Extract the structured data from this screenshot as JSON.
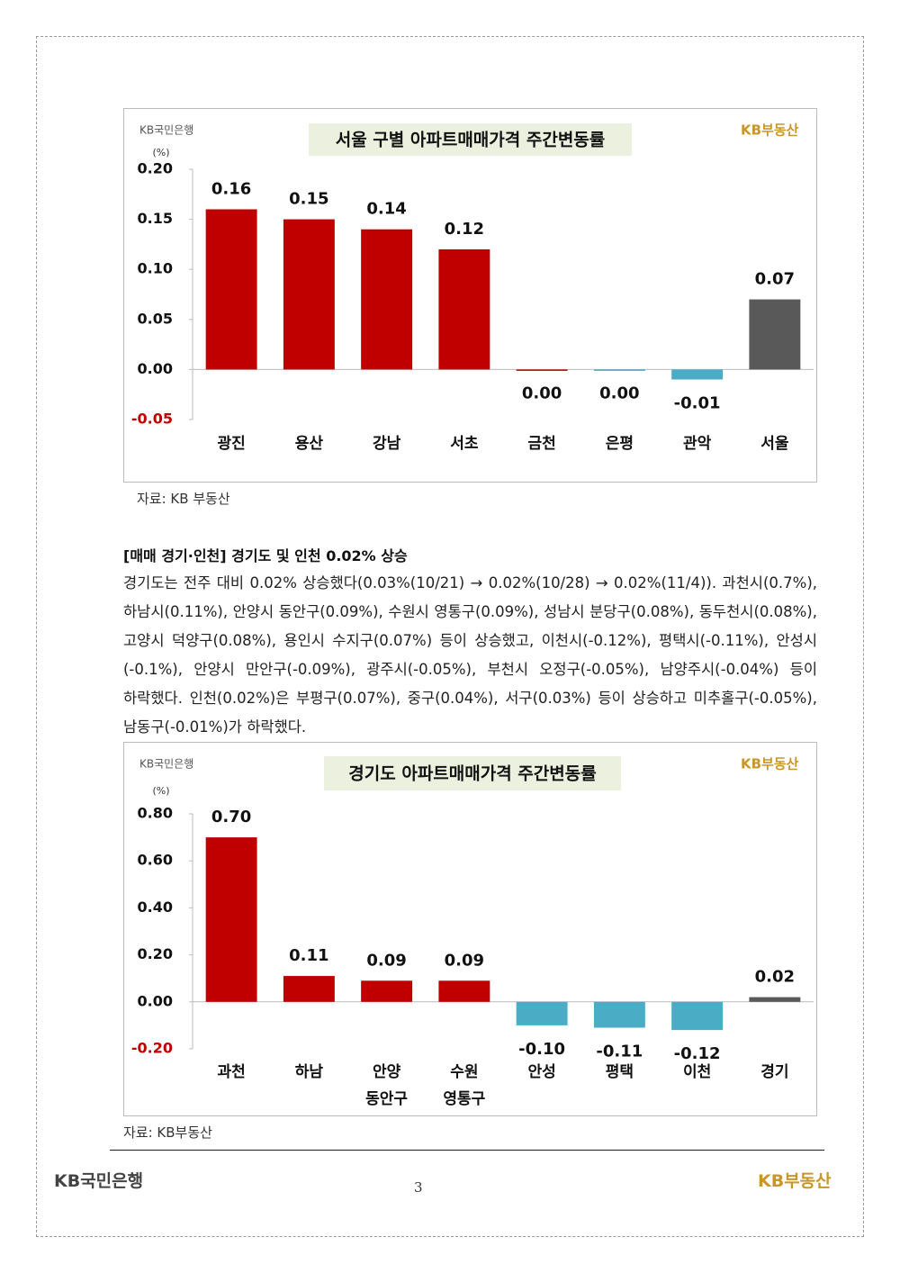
{
  "logo_bank": "KB국민은행",
  "logo_realestate": "KB부동산",
  "chart_data": [
    {
      "type": "bar",
      "title": "서울 구별 아파트매매가격 주간변동률",
      "unit_label": "(%)",
      "categories": [
        [
          "광진"
        ],
        [
          "용산"
        ],
        [
          "강남"
        ],
        [
          "서초"
        ],
        [
          "금천"
        ],
        [
          "은평"
        ],
        [
          "관악"
        ],
        [
          "서울"
        ]
      ],
      "values": [
        0.16,
        0.15,
        0.14,
        0.12,
        0,
        0,
        -0.01,
        0.07
      ],
      "value_labels": [
        "0.16",
        "0.15",
        "0.14",
        "0.12",
        "0.00",
        "0.00",
        "-0.01",
        "0.07"
      ],
      "colors": [
        "#c00000",
        "#c00000",
        "#c00000",
        "#c00000",
        "#c00000",
        "#4bacc6",
        "#4bacc6",
        "#595959"
      ],
      "ylim": [
        -0.05,
        0.2
      ],
      "yticks": [
        {
          "value": 0.2,
          "label": "0.20"
        },
        0.15,
        {
          "value": 0.1,
          "label": "0.10"
        },
        0.05,
        {
          "value": 0,
          "label": "0.00"
        },
        -0.05
      ],
      "negative_tick_color": "#c00000"
    },
    {
      "type": "bar",
      "title": "경기도 아파트매매가격 주간변동률",
      "unit_label": "(%)",
      "categories": [
        [
          "과천"
        ],
        [
          "하남"
        ],
        [
          "안양",
          "동안구"
        ],
        [
          "수원",
          "영통구"
        ],
        [
          "안성"
        ],
        [
          "평택"
        ],
        [
          "이천"
        ],
        [
          "경기"
        ]
      ],
      "values": [
        0.7,
        0.11,
        0.09,
        0.09,
        -0.1,
        -0.11,
        -0.12,
        0.02
      ],
      "value_labels": [
        "0.70",
        "0.11",
        "0.09",
        "0.09",
        "-0.10",
        "-0.11",
        "-0.12",
        "0.02"
      ],
      "colors": [
        "#c00000",
        "#c00000",
        "#c00000",
        "#c00000",
        "#4bacc6",
        "#4bacc6",
        "#4bacc6",
        "#595959"
      ],
      "ylim": [
        -0.2,
        0.8
      ],
      "yticks": [
        {
          "value": 0.8,
          "label": "0.80"
        },
        {
          "value": 0.6,
          "label": "0.60"
        },
        {
          "value": 0.4,
          "label": "0.40"
        },
        {
          "value": 0.2,
          "label": "0.20"
        },
        {
          "value": 0,
          "label": "0.00"
        },
        {
          "value": -0.2,
          "label": "-0.20"
        }
      ],
      "negative_tick_color": "#c00000"
    }
  ],
  "source_1": "자료: KB 부동산",
  "section": {
    "heading": "[매매 경기·인천] 경기도 및 인천 0.02% 상승",
    "paragraph": "경기도는 전주 대비 0.02% 상승했다(0.03%(10/21) → 0.02%(10/28) → 0.02%(11/4)). 과천시(0.7%), 하남시(0.11%), 안양시 동안구(0.09%), 수원시 영통구(0.09%), 성남시 분당구(0.08%), 동두천시(0.08%), 고양시 덕양구(0.08%), 용인시 수지구(0.07%) 등이 상승했고, 이천시(-0.12%), 평택시(-0.11%), 안성시(-0.1%), 안양시 만안구(-0.09%), 광주시(-0.05%), 부천시 오정구(-0.05%), 남양주시(-0.04%) 등이 하락했다. 인천(0.02%)은 부평구(0.07%), 중구(0.04%), 서구(0.03%) 등이 상승하고 미추홀구(-0.05%), 남동구(-0.01%)가 하락했다."
  },
  "source_2": "자료: KB부동산",
  "footer": {
    "page_number": "3"
  }
}
